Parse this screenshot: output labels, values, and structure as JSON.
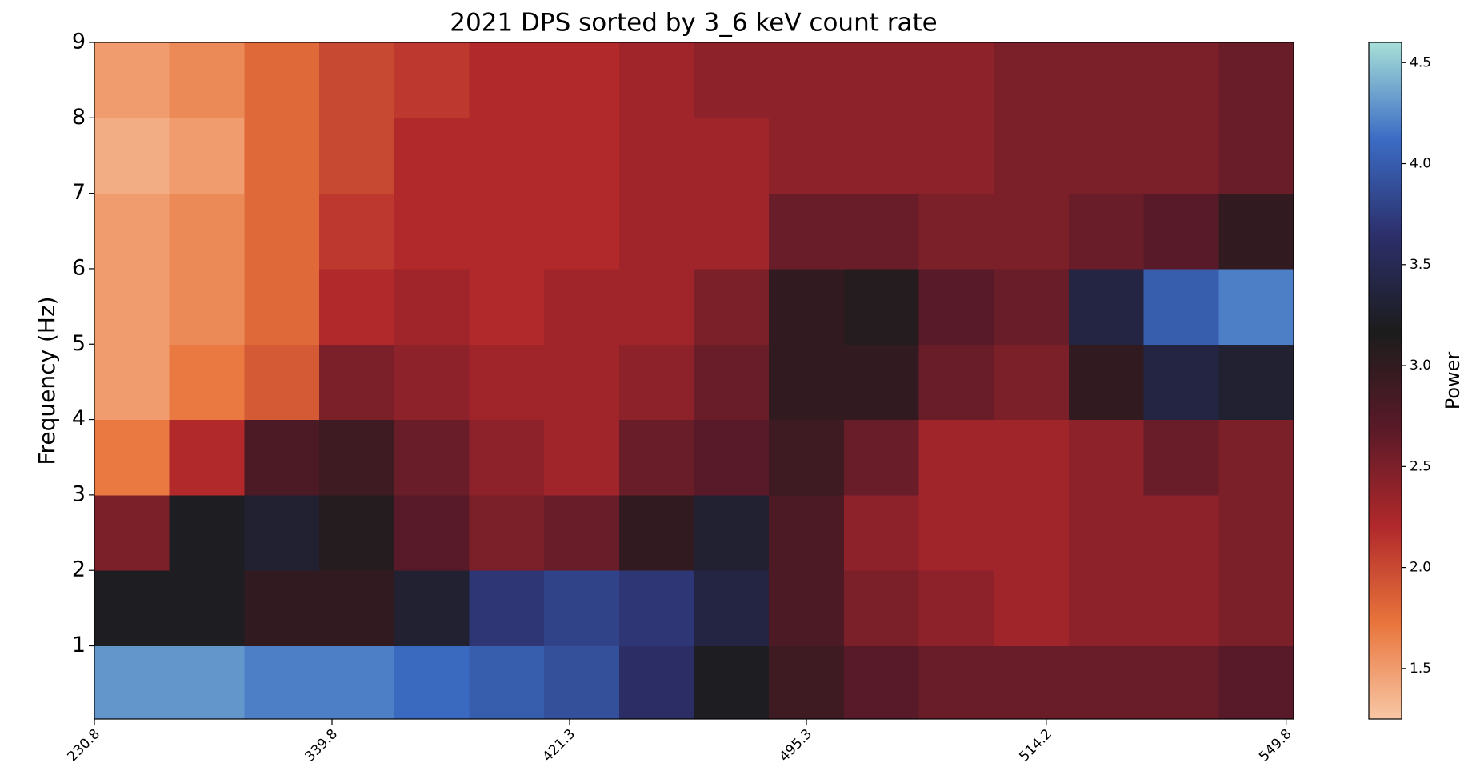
{
  "chart_data": {
    "type": "heatmap",
    "title": "2021 DPS sorted by 3_6 keV count rate",
    "ylabel": "Frequency (Hz)",
    "colorbar_label": "Power",
    "xlim": [
      0,
      16
    ],
    "xticks": [
      {
        "value": 0,
        "label": "230.8"
      },
      {
        "value": 3.17,
        "label": "339.8"
      },
      {
        "value": 6.34,
        "label": "421.3"
      },
      {
        "value": 9.5,
        "label": "495.3"
      },
      {
        "value": 12.7,
        "label": "514.2"
      },
      {
        "value": 15.9,
        "label": "549.8"
      }
    ],
    "ylim": [
      0.03,
      9
    ],
    "yticks": [
      1,
      2,
      3,
      4,
      5,
      6,
      7,
      8,
      9
    ],
    "ybins": [
      0.03,
      1,
      2,
      3,
      4,
      5,
      6,
      7,
      8,
      9
    ],
    "clim": [
      1.25,
      4.6
    ],
    "cticks": [
      {
        "value": 1.5,
        "label": "1.5"
      },
      {
        "value": 2,
        "label": "2.0"
      },
      {
        "value": 2.5,
        "label": "2.5"
      },
      {
        "value": 3,
        "label": "3.0"
      },
      {
        "value": 3.5,
        "label": "3.5"
      },
      {
        "value": 4,
        "label": "4.0"
      },
      {
        "value": 4.5,
        "label": "4.5"
      }
    ],
    "colors": [
      "#f8c7a5",
      "#e8743b",
      "#b0282b",
      "#5a1a28",
      "#1c1c1c",
      "#2c2f6b",
      "#3b6cc4",
      "#a7dfd8"
    ],
    "z": [
      [
        4.3,
        4.3,
        4.2,
        4.2,
        4.1,
        4.0,
        3.9,
        3.6,
        3.2,
        2.9,
        2.7,
        2.6,
        2.6,
        2.6,
        2.6,
        2.7
      ],
      [
        3.2,
        3.2,
        3.0,
        3.0,
        3.3,
        3.7,
        3.8,
        3.7,
        3.4,
        2.8,
        2.5,
        2.4,
        2.3,
        2.4,
        2.4,
        2.5
      ],
      [
        2.5,
        3.2,
        3.3,
        3.1,
        2.7,
        2.5,
        2.6,
        3.0,
        3.3,
        2.8,
        2.4,
        2.3,
        2.3,
        2.4,
        2.4,
        2.5
      ],
      [
        1.7,
        2.2,
        2.8,
        2.9,
        2.6,
        2.4,
        2.3,
        2.6,
        2.7,
        2.9,
        2.6,
        2.3,
        2.3,
        2.4,
        2.6,
        2.5
      ],
      [
        1.5,
        1.7,
        1.9,
        2.5,
        2.4,
        2.3,
        2.3,
        2.4,
        2.6,
        3.0,
        3.0,
        2.6,
        2.5,
        3.0,
        3.4,
        3.3
      ],
      [
        1.5,
        1.6,
        1.8,
        2.2,
        2.3,
        2.2,
        2.3,
        2.3,
        2.5,
        3.0,
        3.1,
        2.7,
        2.6,
        3.4,
        4.0,
        4.2
      ],
      [
        1.5,
        1.6,
        1.8,
        2.1,
        2.2,
        2.2,
        2.2,
        2.3,
        2.3,
        2.6,
        2.6,
        2.5,
        2.5,
        2.6,
        2.7,
        3.0
      ],
      [
        1.4,
        1.5,
        1.8,
        2.0,
        2.2,
        2.2,
        2.2,
        2.3,
        2.3,
        2.4,
        2.4,
        2.4,
        2.5,
        2.5,
        2.5,
        2.6
      ],
      [
        1.5,
        1.6,
        1.8,
        2.0,
        2.1,
        2.2,
        2.2,
        2.3,
        2.4,
        2.4,
        2.4,
        2.4,
        2.5,
        2.5,
        2.5,
        2.6
      ]
    ]
  }
}
